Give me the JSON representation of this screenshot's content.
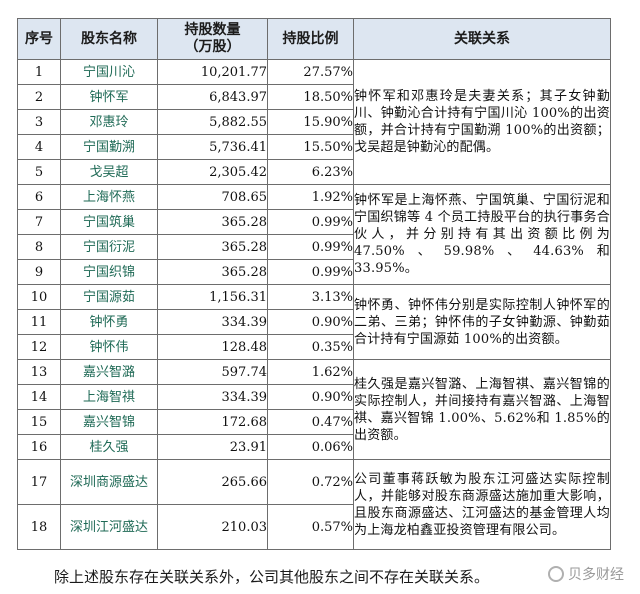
{
  "table": {
    "headers": {
      "index": "序号",
      "name": "股东名称",
      "shares_line1": "持股数量",
      "shares_line2": "（万股）",
      "ratio": "持股比例",
      "relation": "关联关系"
    },
    "rows": [
      {
        "index": "1",
        "name": "宁国川沁",
        "shares": "10,201.77",
        "ratio": "27.57%"
      },
      {
        "index": "2",
        "name": "钟怀军",
        "shares": "6,843.97",
        "ratio": "18.50%"
      },
      {
        "index": "3",
        "name": "邓惠玲",
        "shares": "5,882.55",
        "ratio": "15.90%"
      },
      {
        "index": "4",
        "name": "宁国勤溯",
        "shares": "5,736.41",
        "ratio": "15.50%"
      },
      {
        "index": "5",
        "name": "戈吴超",
        "shares": "2,305.42",
        "ratio": "6.23%"
      },
      {
        "index": "6",
        "name": "上海怀燕",
        "shares": "708.65",
        "ratio": "1.92%"
      },
      {
        "index": "7",
        "name": "宁国筑巢",
        "shares": "365.28",
        "ratio": "0.99%"
      },
      {
        "index": "8",
        "name": "宁国衍泥",
        "shares": "365.28",
        "ratio": "0.99%"
      },
      {
        "index": "9",
        "name": "宁国织锦",
        "shares": "365.28",
        "ratio": "0.99%"
      },
      {
        "index": "10",
        "name": "宁国源茹",
        "shares": "1,156.31",
        "ratio": "3.13%"
      },
      {
        "index": "11",
        "name": "钟怀勇",
        "shares": "334.39",
        "ratio": "0.90%"
      },
      {
        "index": "12",
        "name": "钟怀伟",
        "shares": "128.48",
        "ratio": "0.35%"
      },
      {
        "index": "13",
        "name": "嘉兴智潞",
        "shares": "597.74",
        "ratio": "1.62%"
      },
      {
        "index": "14",
        "name": "上海智祺",
        "shares": "334.39",
        "ratio": "0.90%"
      },
      {
        "index": "15",
        "name": "嘉兴智锦",
        "shares": "172.68",
        "ratio": "0.47%"
      },
      {
        "index": "16",
        "name": "桂久强",
        "shares": "23.91",
        "ratio": "0.06%"
      },
      {
        "index": "17",
        "name": "深圳商源盛达",
        "shares": "265.66",
        "ratio": "0.72%"
      },
      {
        "index": "18",
        "name": "深圳江河盛达",
        "shares": "210.03",
        "ratio": "0.57%"
      }
    ],
    "relations": [
      "钟怀军和邓惠玲是夫妻关系；其子女钟勤川、钟勤沁合计持有宁国川沁 100%的出资额，并合计持有宁国勤溯 100%的出资额；戈吴超是钟勤沁的配偶。",
      "钟怀军是上海怀燕、宁国筑巢、宁国衍泥和宁国织锦等 4 个员工持股平台的执行事务合伙人，并分别持有其出资额比例为 47.50%、59.98%、44.63%和 33.95%。",
      "钟怀勇、钟怀伟分别是实际控制人钟怀军的二弟、三弟；钟怀伟的子女钟勤源、钟勤茹合计持有宁国源茹 100%的出资额。",
      "桂久强是嘉兴智潞、上海智祺、嘉兴智锦的实际控制人，并间接持有嘉兴智潞、上海智祺、嘉兴智锦 1.00%、5.62%和 1.85%的出资额。",
      "公司董事蒋跃敏为股东江河盛达实际控制人，并能够对股东商源盛达施加重大影响，且股东商源盛达、江河盛达的基金管理人均为上海龙柏鑫亚投资管理有限公司。"
    ]
  },
  "footer": {
    "caption": "除上述股东存在关联关系外，公司其他股东之间不存在关联关系。"
  },
  "watermark": {
    "text": "贝多财经",
    "icon": "watermark-logo-icon"
  }
}
